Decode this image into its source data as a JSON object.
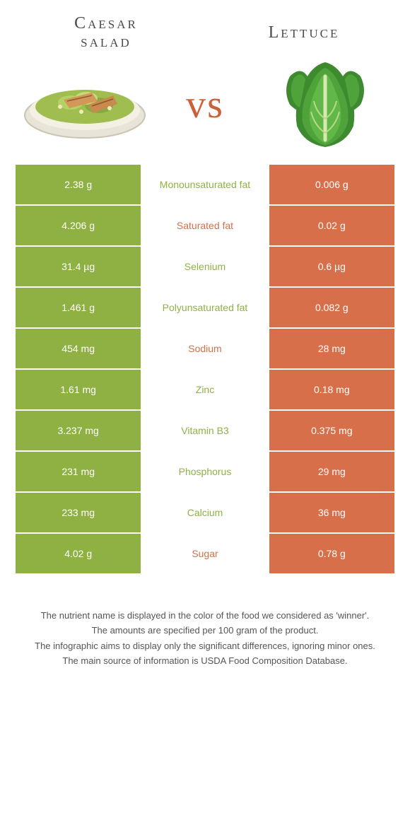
{
  "colors": {
    "left_food": "#8fb143",
    "right_food": "#d66f4a",
    "background": "#ffffff",
    "text_white": "#ffffff",
    "title_color": "#4a4a4a"
  },
  "header": {
    "left_title_line1": "Caesar",
    "left_title_line2": "salad",
    "right_title": "Lettuce",
    "vs": "vs"
  },
  "rows": [
    {
      "left": "2.38 g",
      "label": "Monounsaturated fat",
      "right": "0.006 g",
      "winner": "left"
    },
    {
      "left": "4.206 g",
      "label": "Saturated fat",
      "right": "0.02 g",
      "winner": "right"
    },
    {
      "left": "31.4 µg",
      "label": "Selenium",
      "right": "0.6 µg",
      "winner": "left"
    },
    {
      "left": "1.461 g",
      "label": "Polyunsaturated fat",
      "right": "0.082 g",
      "winner": "left"
    },
    {
      "left": "454 mg",
      "label": "Sodium",
      "right": "28 mg",
      "winner": "right"
    },
    {
      "left": "1.61 mg",
      "label": "Zinc",
      "right": "0.18 mg",
      "winner": "left"
    },
    {
      "left": "3.237 mg",
      "label": "Vitamin B3",
      "right": "0.375 mg",
      "winner": "left"
    },
    {
      "left": "231 mg",
      "label": "Phosphorus",
      "right": "29 mg",
      "winner": "left"
    },
    {
      "left": "233 mg",
      "label": "Calcium",
      "right": "36 mg",
      "winner": "left"
    },
    {
      "left": "4.02 g",
      "label": "Sugar",
      "right": "0.78 g",
      "winner": "right"
    }
  ],
  "footer": {
    "line1": "The nutrient name is displayed in the color of the food we considered as 'winner'.",
    "line2": "The amounts are specified per 100 gram of the product.",
    "line3": "The infographic aims to display only the significant differences, ignoring minor ones.",
    "line4": "The main source of information is USDA Food Composition Database."
  },
  "typography": {
    "title_fontsize": 24,
    "vs_fontsize": 56,
    "cell_fontsize": 14,
    "footer_fontsize": 13
  }
}
